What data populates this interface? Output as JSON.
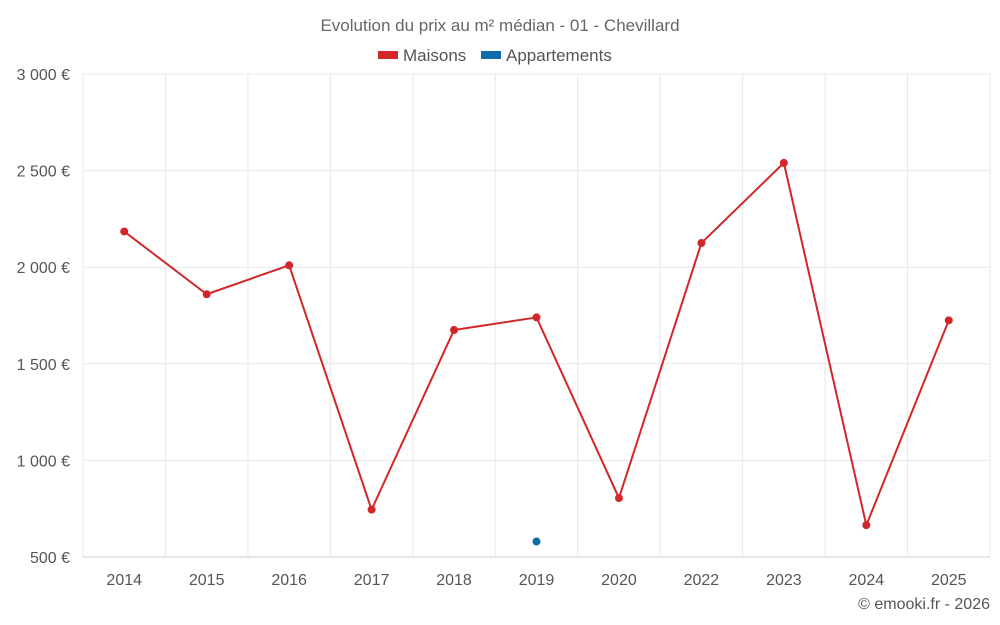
{
  "chart_data": {
    "type": "line",
    "title": "Evolution du prix au m² médian - 01 - Chevillard",
    "categories": [
      "2014",
      "2015",
      "2016",
      "2017",
      "2018",
      "2019",
      "2020",
      "2022",
      "2023",
      "2024",
      "2025"
    ],
    "series": [
      {
        "name": "Maisons",
        "color": "#d1272a",
        "values": [
          2185,
          1860,
          2010,
          745,
          1675,
          1740,
          805,
          2125,
          2540,
          665,
          1725
        ]
      },
      {
        "name": "Appartements",
        "color": "#0b6ea8",
        "values": [
          null,
          null,
          null,
          null,
          null,
          580,
          null,
          null,
          null,
          null,
          null
        ]
      }
    ],
    "yticks": [
      "500 €",
      "1 000 €",
      "1 500 €",
      "2 000 €",
      "2 500 €",
      "3 000 €"
    ],
    "ylim": [
      500,
      3000
    ],
    "grid": true,
    "legend_position": "top-center",
    "credit": "© emooki.fr - 2026"
  }
}
